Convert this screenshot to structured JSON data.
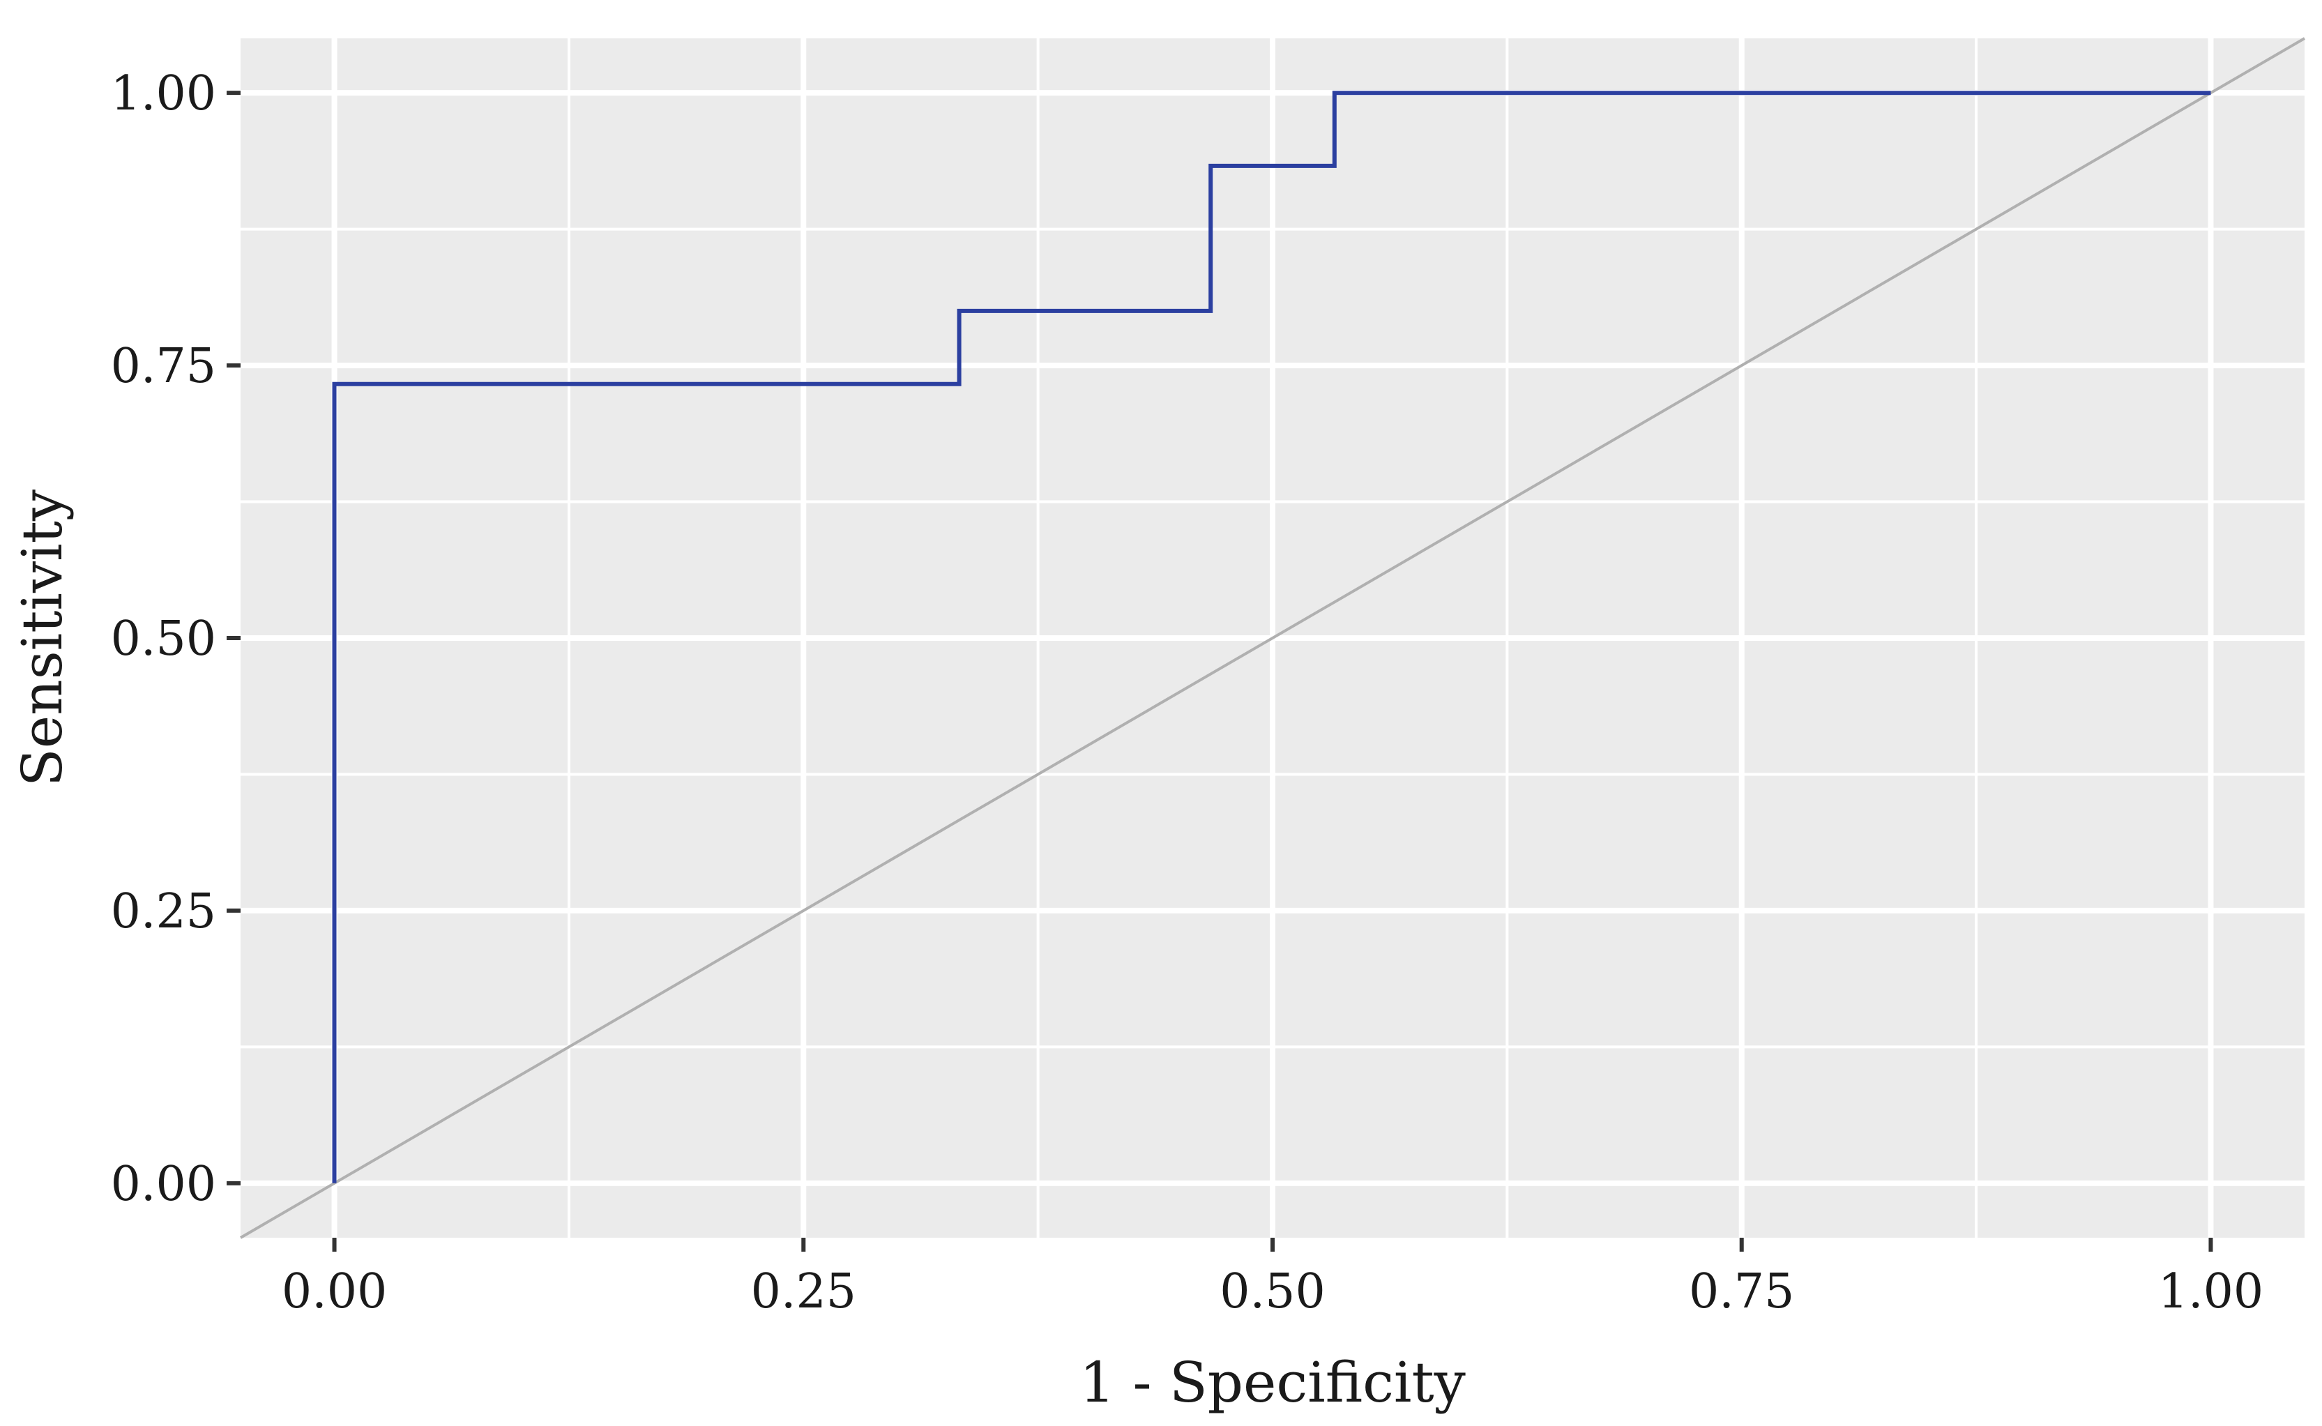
{
  "chart_data": {
    "type": "line",
    "title": "",
    "xlabel": "1 - Specificity",
    "ylabel": "Sensitivity",
    "xlim": [
      -0.05,
      1.05
    ],
    "ylim": [
      -0.05,
      1.05
    ],
    "x_ticks": [
      0,
      0.25,
      0.5,
      0.75,
      1
    ],
    "y_ticks": [
      0,
      0.25,
      0.5,
      0.75,
      1
    ],
    "x_tick_labels": [
      "0.00",
      "0.25",
      "0.50",
      "0.75",
      "1.00"
    ],
    "y_tick_labels": [
      "0.00",
      "0.25",
      "0.50",
      "0.75",
      "1.00"
    ],
    "grid": true,
    "series": [
      {
        "style": "step",
        "color": "#2b3fa0",
        "points": [
          [
            0,
            0
          ],
          [
            0,
            0.733
          ],
          [
            0.333,
            0.733
          ],
          [
            0.333,
            0.8
          ],
          [
            0.467,
            0.8
          ],
          [
            0.467,
            0.933
          ],
          [
            0.533,
            0.933
          ],
          [
            0.533,
            1.0
          ],
          [
            1.0,
            1.0
          ]
        ]
      }
    ],
    "reference_line": {
      "from": [
        -0.05,
        -0.05
      ],
      "to": [
        1.05,
        1.05
      ],
      "color": "#b0b0b0"
    },
    "panel_color": "#ebebeb",
    "grid_color": "#ffffff"
  }
}
